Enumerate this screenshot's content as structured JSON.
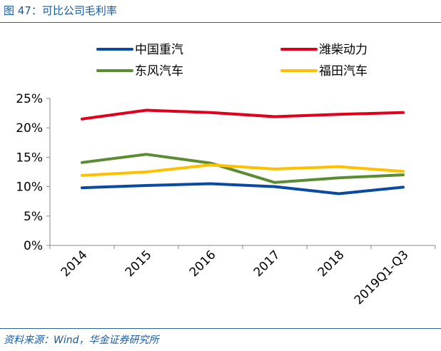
{
  "figure": {
    "title": "图 47：可比公司毛利率",
    "source": "资料来源：Wind，华金证券研究所"
  },
  "chart_data": {
    "type": "line",
    "categories": [
      "2014",
      "2015",
      "2016",
      "2017",
      "2018",
      "2019Q1-Q3"
    ],
    "series": [
      {
        "name": "中国重汽",
        "color": "#0a4aa0",
        "values": [
          9.8,
          10.2,
          10.5,
          10.0,
          8.8,
          9.9
        ]
      },
      {
        "name": "潍柴动力",
        "color": "#e0001b",
        "values": [
          21.5,
          23.0,
          22.6,
          21.9,
          22.3,
          22.6
        ]
      },
      {
        "name": "东风汽车",
        "color": "#5b8c32",
        "values": [
          14.1,
          15.5,
          14.0,
          10.7,
          11.5,
          12.0
        ]
      },
      {
        "name": "福田汽车",
        "color": "#ffc000",
        "values": [
          11.9,
          12.5,
          13.7,
          13.0,
          13.4,
          12.6
        ]
      }
    ],
    "ylim": [
      0,
      25
    ],
    "yticks": [
      "0%",
      "5%",
      "10%",
      "15%",
      "20%",
      "25%"
    ],
    "legend_position": "top",
    "grid": false
  }
}
